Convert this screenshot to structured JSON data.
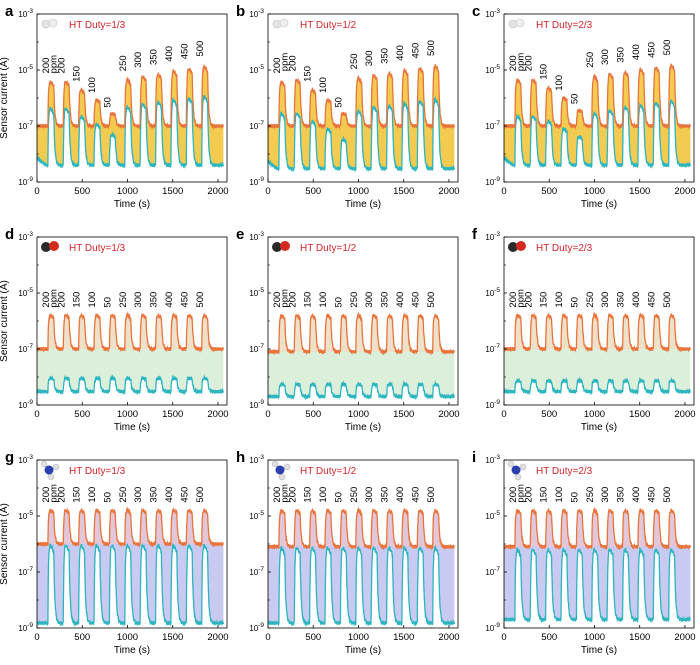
{
  "figure": {
    "x_axis_title": "Time (s)",
    "y_axis_title": "Sensor current (A)",
    "x_ticks": [
      "0",
      "500",
      "1000",
      "1500",
      "2000"
    ],
    "y_ticks": [
      {
        "base": "10",
        "exp": "-3"
      },
      {
        "base": "10",
        "exp": "-5"
      },
      {
        "base": "10",
        "exp": "-7"
      },
      {
        "base": "10",
        "exp": "-9"
      }
    ],
    "colors": {
      "orange_trace": "#e8743b",
      "cyan_trace": "#2bb5bf",
      "duty_label": "#d0262b",
      "row1_fill": "#f2c233",
      "row2_fill": "#cfe9cf",
      "row2_pulse_fill": "#f3dcc4",
      "row3_fill": "#b7b8ec",
      "row3_pulse_fill": "#e9c4d3"
    },
    "molecule_icons": [
      "h2-icon",
      "o2-icon",
      "nh3-icon"
    ]
  },
  "chart_data": [
    {
      "panel": "a",
      "row": 1,
      "type": "line",
      "title": "HT Duty=1/3",
      "xlabel": "Time (s)",
      "ylabel": "Sensor current (A)",
      "yscale": "log",
      "xlim": [
        0,
        2100
      ],
      "ylim": [
        1e-09,
        0.001
      ],
      "conc_ppm": [
        "200",
        "200",
        "150",
        "100",
        "50",
        "250",
        "300",
        "350",
        "400",
        "450",
        "500"
      ],
      "unit_label": "ppm",
      "pulse_start_s": [
        120,
        290,
        460,
        630,
        800,
        970,
        1140,
        1310,
        1480,
        1650,
        1820
      ],
      "series": [
        {
          "name": "orange",
          "baseline": 1e-07,
          "peaks": [
            5e-06,
            5e-06,
            2.5e-06,
            1e-06,
            3e-07,
            6e-06,
            8e-06,
            1e-05,
            1.3e-05,
            1.6e-05,
            2e-05
          ]
        },
        {
          "name": "cyan",
          "baseline": 4e-09,
          "peaks": [
            6e-07,
            6e-07,
            3e-07,
            1.5e-07,
            6e-08,
            7e-07,
            9e-07,
            1.1e-06,
            1.3e-06,
            1.5e-06,
            1.8e-06
          ]
        }
      ]
    },
    {
      "panel": "b",
      "row": 1,
      "type": "line",
      "title": "HT Duty=1/2",
      "xlabel": "Time (s)",
      "ylabel": "",
      "yscale": "log",
      "xlim": [
        0,
        2100
      ],
      "ylim": [
        1e-09,
        0.001
      ],
      "conc_ppm": [
        "200",
        "200",
        "150",
        "100",
        "50",
        "250",
        "300",
        "350",
        "400",
        "450",
        "500"
      ],
      "unit_label": "ppm",
      "pulse_start_s": [
        120,
        290,
        460,
        630,
        800,
        970,
        1140,
        1310,
        1480,
        1650,
        1820
      ],
      "series": [
        {
          "name": "orange",
          "baseline": 1e-07,
          "peaks": [
            5e-06,
            6e-06,
            2.5e-06,
            1e-06,
            3e-07,
            7e-06,
            9e-06,
            1.1e-05,
            1.4e-05,
            1.7e-05,
            2.1e-05
          ]
        },
        {
          "name": "cyan",
          "baseline": 3e-09,
          "peaks": [
            4e-07,
            4e-07,
            2e-07,
            1e-07,
            4e-08,
            5e-07,
            7e-07,
            8e-07,
            1e-06,
            1.2e-06,
            1.4e-06
          ]
        }
      ]
    },
    {
      "panel": "c",
      "row": 1,
      "type": "line",
      "title": "HT Duty=2/3",
      "xlabel": "Time (s)",
      "ylabel": "",
      "yscale": "log",
      "xlim": [
        0,
        2100
      ],
      "ylim": [
        1e-09,
        0.001
      ],
      "conc_ppm": [
        "200",
        "200",
        "150",
        "100",
        "50",
        "250",
        "300",
        "350",
        "400",
        "450",
        "500"
      ],
      "unit_label": "ppm",
      "pulse_start_s": [
        120,
        290,
        460,
        630,
        800,
        970,
        1140,
        1310,
        1480,
        1650,
        1820
      ],
      "series": [
        {
          "name": "orange",
          "baseline": 1e-07,
          "peaks": [
            6e-06,
            6e-06,
            3e-06,
            1.2e-06,
            4e-07,
            8e-06,
            1e-05,
            1.2e-05,
            1.5e-05,
            1.8e-05,
            2.2e-05
          ]
        },
        {
          "name": "cyan",
          "baseline": 4e-09,
          "peaks": [
            3e-07,
            3e-07,
            2e-07,
            1e-07,
            5e-08,
            4e-07,
            5e-07,
            7e-07,
            8e-07,
            1e-06,
            1.2e-06
          ]
        }
      ]
    },
    {
      "panel": "d",
      "row": 2,
      "type": "line",
      "title": "HT Duty=1/3",
      "xlabel": "Time (s)",
      "ylabel": "Sensor current (A)",
      "yscale": "log",
      "xlim": [
        0,
        2100
      ],
      "ylim": [
        1e-09,
        0.001
      ],
      "conc_ppm": [
        "200",
        "200",
        "150",
        "100",
        "50",
        "250",
        "300",
        "350",
        "400",
        "450",
        "500"
      ],
      "unit_label": "ppm",
      "pulse_start_s": [
        120,
        290,
        460,
        630,
        800,
        970,
        1140,
        1310,
        1480,
        1650,
        1820
      ],
      "series": [
        {
          "name": "orange",
          "baseline": 1e-07,
          "peaks": [
            2e-06,
            2e-06,
            2e-06,
            2e-06,
            2e-06,
            2e-06,
            2e-06,
            2e-06,
            2e-06,
            2e-06,
            2e-06
          ]
        },
        {
          "name": "cyan",
          "baseline": 3e-09,
          "peaks": [
            1e-08,
            1e-08,
            1e-08,
            1e-08,
            1e-08,
            1e-08,
            1e-08,
            1e-08,
            1e-08,
            1e-08,
            1e-08
          ]
        }
      ]
    },
    {
      "panel": "e",
      "row": 2,
      "type": "line",
      "title": "HT Duty=1/2",
      "xlabel": "Time (s)",
      "ylabel": "",
      "yscale": "log",
      "xlim": [
        0,
        2100
      ],
      "ylim": [
        1e-09,
        0.001
      ],
      "conc_ppm": [
        "200",
        "200",
        "150",
        "100",
        "50",
        "250",
        "300",
        "350",
        "400",
        "450",
        "500"
      ],
      "unit_label": "ppm",
      "pulse_start_s": [
        120,
        290,
        460,
        630,
        800,
        970,
        1140,
        1310,
        1480,
        1650,
        1820
      ],
      "series": [
        {
          "name": "orange",
          "baseline": 8e-08,
          "peaks": [
            2e-06,
            2e-06,
            2e-06,
            2e-06,
            2e-06,
            2e-06,
            2e-06,
            2e-06,
            2e-06,
            2e-06,
            2e-06
          ]
        },
        {
          "name": "cyan",
          "baseline": 2e-09,
          "peaks": [
            6e-09,
            6e-09,
            6e-09,
            6e-09,
            6e-09,
            6e-09,
            6e-09,
            6e-09,
            6e-09,
            6e-09,
            6e-09
          ]
        }
      ]
    },
    {
      "panel": "f",
      "row": 2,
      "type": "line",
      "title": "HT Duty=2/3",
      "xlabel": "Time (s)",
      "ylabel": "",
      "yscale": "log",
      "xlim": [
        0,
        2100
      ],
      "ylim": [
        1e-09,
        0.001
      ],
      "conc_ppm": [
        "200",
        "200",
        "150",
        "100",
        "50",
        "250",
        "300",
        "350",
        "400",
        "450",
        "500"
      ],
      "unit_label": "ppm",
      "pulse_start_s": [
        120,
        290,
        460,
        630,
        800,
        970,
        1140,
        1310,
        1480,
        1650,
        1820
      ],
      "series": [
        {
          "name": "orange",
          "baseline": 1e-07,
          "peaks": [
            2e-06,
            2e-06,
            2e-06,
            2e-06,
            2e-06,
            2e-06,
            2e-06,
            2e-06,
            2e-06,
            2e-06,
            2e-06
          ]
        },
        {
          "name": "cyan",
          "baseline": 3e-09,
          "peaks": [
            8e-09,
            8e-09,
            8e-09,
            8e-09,
            8e-09,
            8e-09,
            8e-09,
            8e-09,
            8e-09,
            8e-09,
            8e-09
          ]
        }
      ]
    },
    {
      "panel": "g",
      "row": 3,
      "type": "line",
      "title": "HT Duty=1/3",
      "xlabel": "Time (s)",
      "ylabel": "Sensor current (A)",
      "yscale": "log",
      "xlim": [
        0,
        2100
      ],
      "ylim": [
        1e-09,
        0.001
      ],
      "conc_ppm": [
        "200",
        "200",
        "150",
        "100",
        "50",
        "250",
        "300",
        "350",
        "400",
        "450",
        "500"
      ],
      "unit_label": "ppm",
      "pulse_start_s": [
        120,
        290,
        460,
        630,
        800,
        970,
        1140,
        1310,
        1480,
        1650,
        1820
      ],
      "series": [
        {
          "name": "orange",
          "baseline": 1e-06,
          "peaks": [
            2e-05,
            2e-05,
            2e-05,
            2e-05,
            2e-05,
            2e-05,
            2e-05,
            2e-05,
            2e-05,
            2e-05,
            2e-05
          ]
        },
        {
          "name": "cyan",
          "baseline": 1.5e-09,
          "peaks": [
            1.5e-06,
            1.5e-06,
            1.5e-06,
            1.5e-06,
            1.5e-06,
            1.5e-06,
            1.5e-06,
            1.5e-06,
            1.5e-06,
            1.5e-06,
            1.5e-06
          ]
        }
      ]
    },
    {
      "panel": "h",
      "row": 3,
      "type": "line",
      "title": "HT Duty=1/2",
      "xlabel": "Time (s)",
      "ylabel": "",
      "yscale": "log",
      "xlim": [
        0,
        2100
      ],
      "ylim": [
        1e-09,
        0.001
      ],
      "conc_ppm": [
        "200",
        "200",
        "150",
        "100",
        "50",
        "250",
        "300",
        "350",
        "400",
        "450",
        "500"
      ],
      "unit_label": "ppm",
      "pulse_start_s": [
        120,
        290,
        460,
        630,
        800,
        970,
        1140,
        1310,
        1480,
        1650,
        1820
      ],
      "series": [
        {
          "name": "orange",
          "baseline": 8e-07,
          "peaks": [
            2e-05,
            2e-05,
            2e-05,
            2e-05,
            2e-05,
            2e-05,
            2e-05,
            2e-05,
            2e-05,
            2e-05,
            2e-05
          ]
        },
        {
          "name": "cyan",
          "baseline": 1.5e-09,
          "peaks": [
            1.2e-06,
            1.2e-06,
            1.2e-06,
            1.2e-06,
            1.2e-06,
            1.2e-06,
            1.2e-06,
            1.2e-06,
            1.2e-06,
            1.2e-06,
            1.2e-06
          ]
        }
      ]
    },
    {
      "panel": "i",
      "row": 3,
      "type": "line",
      "title": "HT Duty=2/3",
      "xlabel": "Time (s)",
      "ylabel": "",
      "yscale": "log",
      "xlim": [
        0,
        2100
      ],
      "ylim": [
        1e-09,
        0.001
      ],
      "conc_ppm": [
        "200",
        "200",
        "150",
        "100",
        "50",
        "250",
        "300",
        "350",
        "400",
        "450",
        "500"
      ],
      "unit_label": "ppm",
      "pulse_start_s": [
        120,
        290,
        460,
        630,
        800,
        970,
        1140,
        1310,
        1480,
        1650,
        1820
      ],
      "series": [
        {
          "name": "orange",
          "baseline": 8e-07,
          "peaks": [
            2e-05,
            2e-05,
            2e-05,
            2e-05,
            2e-05,
            2e-05,
            2e-05,
            2e-05,
            2e-05,
            2e-05,
            2e-05
          ]
        },
        {
          "name": "cyan",
          "baseline": 2e-09,
          "peaks": [
            1e-06,
            1e-06,
            1e-06,
            1e-06,
            1e-06,
            1e-06,
            1e-06,
            1e-06,
            1e-06,
            1e-06,
            1e-06
          ]
        }
      ]
    }
  ]
}
